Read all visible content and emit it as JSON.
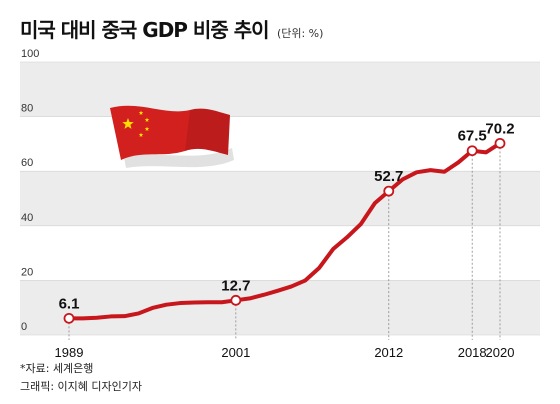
{
  "header": {
    "title": "미국 대비 중국 GDP 비중 추이",
    "unit": "(단위: %)"
  },
  "footer": {
    "source": "*자료: 세계은행",
    "credit": "그래픽: 이지혜 디자인기자"
  },
  "colors": {
    "line": "#c8161d",
    "band": "#ececec",
    "flag_red": "#d2201f",
    "flag_star": "#ffde00",
    "dashes": "#888888"
  },
  "chart_data": {
    "type": "line",
    "ylim": [
      0,
      100
    ],
    "yticks": [
      0,
      20,
      40,
      60,
      80,
      100
    ],
    "xlim": [
      1989,
      2021
    ],
    "xticks": [
      "1989",
      "2001",
      "2012",
      "2018",
      "2020"
    ],
    "series": [
      {
        "x": [
          1989,
          1990,
          1991,
          1992,
          1993,
          1994,
          1995,
          1996,
          1997,
          1998,
          1999,
          2000,
          2001,
          2002,
          2003,
          2004,
          2005,
          2006,
          2007,
          2008,
          2009,
          2010,
          2011,
          2012,
          2013,
          2014,
          2015,
          2016,
          2017,
          2018,
          2019,
          2020
        ],
        "values": [
          6.1,
          6.1,
          6.3,
          6.8,
          6.9,
          7.9,
          9.9,
          11.1,
          11.7,
          11.9,
          12.0,
          12.0,
          12.7,
          13.4,
          14.7,
          16.2,
          17.8,
          20.0,
          24.6,
          31.5,
          35.8,
          40.7,
          48.3,
          52.7,
          57.0,
          59.6,
          60.4,
          59.8,
          63.2,
          67.5,
          66.9,
          70.2
        ]
      }
    ],
    "data_labels": [
      {
        "x": 1989,
        "y": 6.1,
        "text": "6.1"
      },
      {
        "x": 2001,
        "y": 12.7,
        "text": "12.7"
      },
      {
        "x": 2012,
        "y": 52.7,
        "text": "52.7"
      },
      {
        "x": 2018,
        "y": 67.5,
        "text": "67.5"
      },
      {
        "x": 2020,
        "y": 70.2,
        "text": "70.2"
      }
    ]
  }
}
